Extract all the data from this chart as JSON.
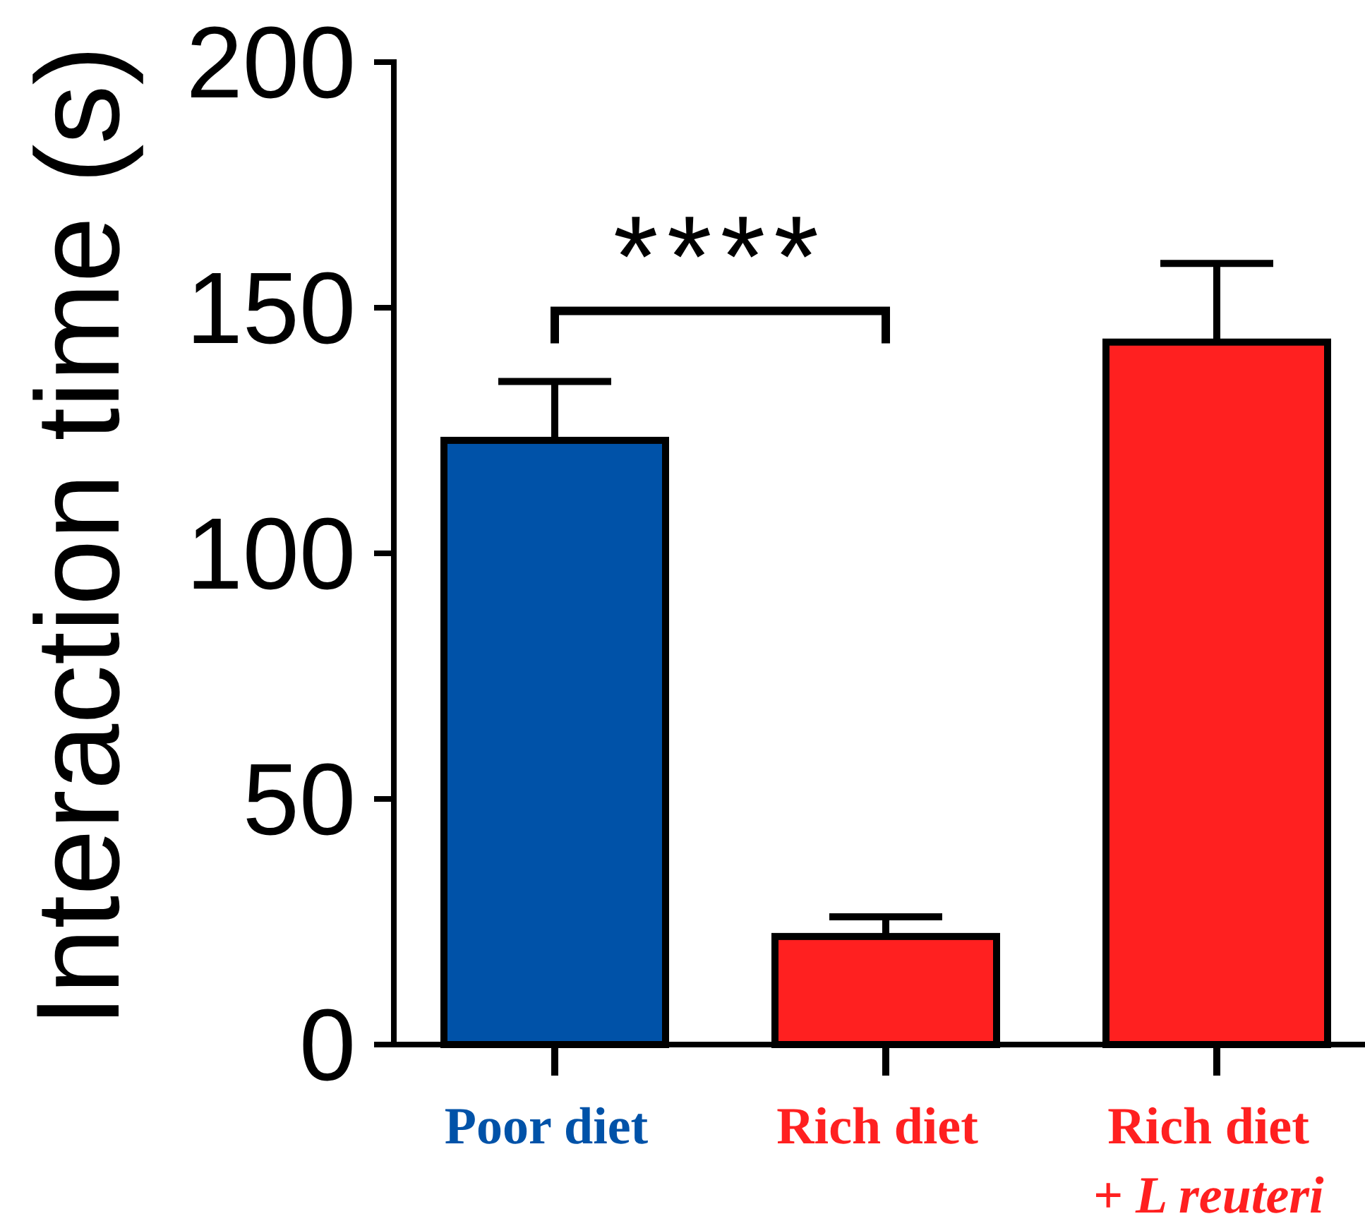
{
  "chart_data": {
    "type": "bar",
    "ylabel": "Interaction time (s)",
    "categories": [
      "Poor diet",
      "Rich diet",
      "Rich diet\n+ L reuteri"
    ],
    "values": [
      123,
      22,
      143
    ],
    "errors": [
      [
        123,
        135
      ],
      [
        22,
        26
      ],
      [
        143,
        159
      ]
    ],
    "colors": [
      "#0052a8",
      "#ff2020",
      "#ff2020"
    ],
    "ylim": [
      0,
      200
    ],
    "yticks": [
      0,
      50,
      100,
      150,
      200
    ],
    "annotations": [
      "****"
    ]
  }
}
